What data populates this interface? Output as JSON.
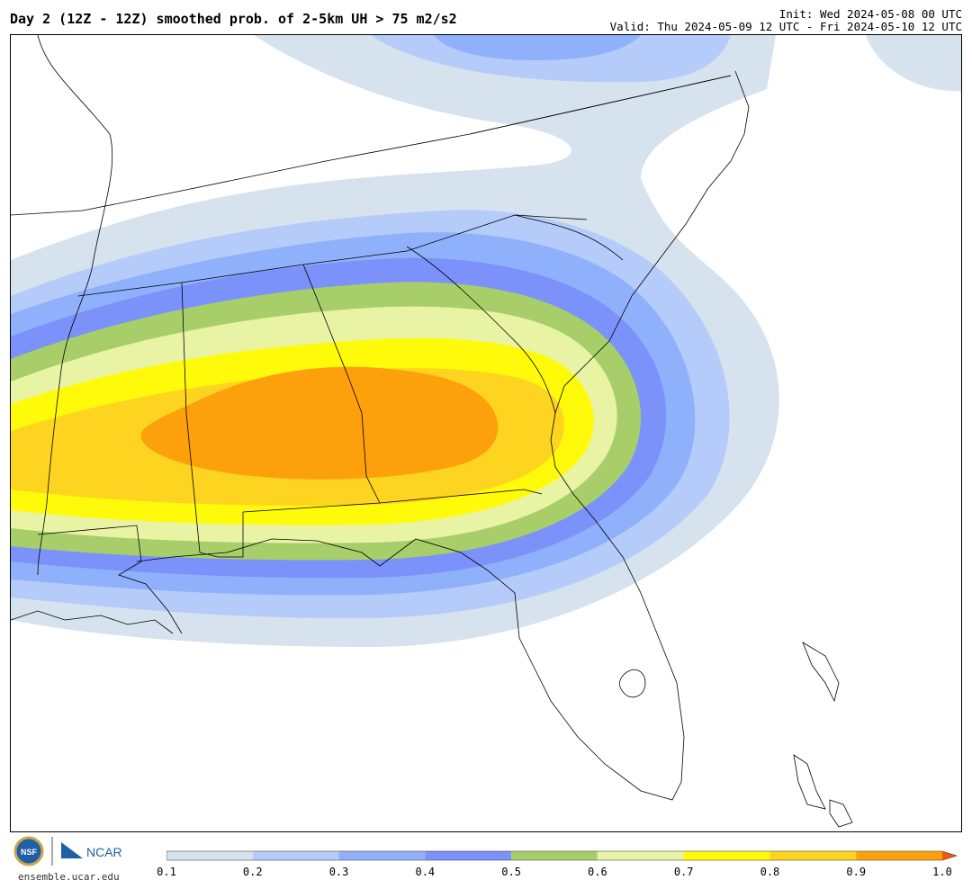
{
  "header": {
    "title": "Day 2 (12Z - 12Z) smoothed prob. of 2-5km UH > 75 m2/s2",
    "init": "Init: Wed 2024-05-08 00 UTC",
    "valid": "Valid: Thu 2024-05-09 12 UTC - Fri 2024-05-10 12 UTC"
  },
  "footer": {
    "site": "ensemble.ucar.edu",
    "logo_nsf": "NSF",
    "logo_ncar": "NCAR"
  },
  "colorbar": {
    "ticks": [
      "0.1",
      "0.2",
      "0.3",
      "0.4",
      "0.5",
      "0.6",
      "0.7",
      "0.8",
      "0.9",
      "1.0"
    ],
    "colors": [
      "#d6e2ee",
      "#b5cbfa",
      "#8fb1fb",
      "#7b92fa",
      "#a8ce6a",
      "#e8f4a4",
      "#fffa0a",
      "#fdd420",
      "#fca00c"
    ],
    "extend_color": "#f25a0a"
  }
}
